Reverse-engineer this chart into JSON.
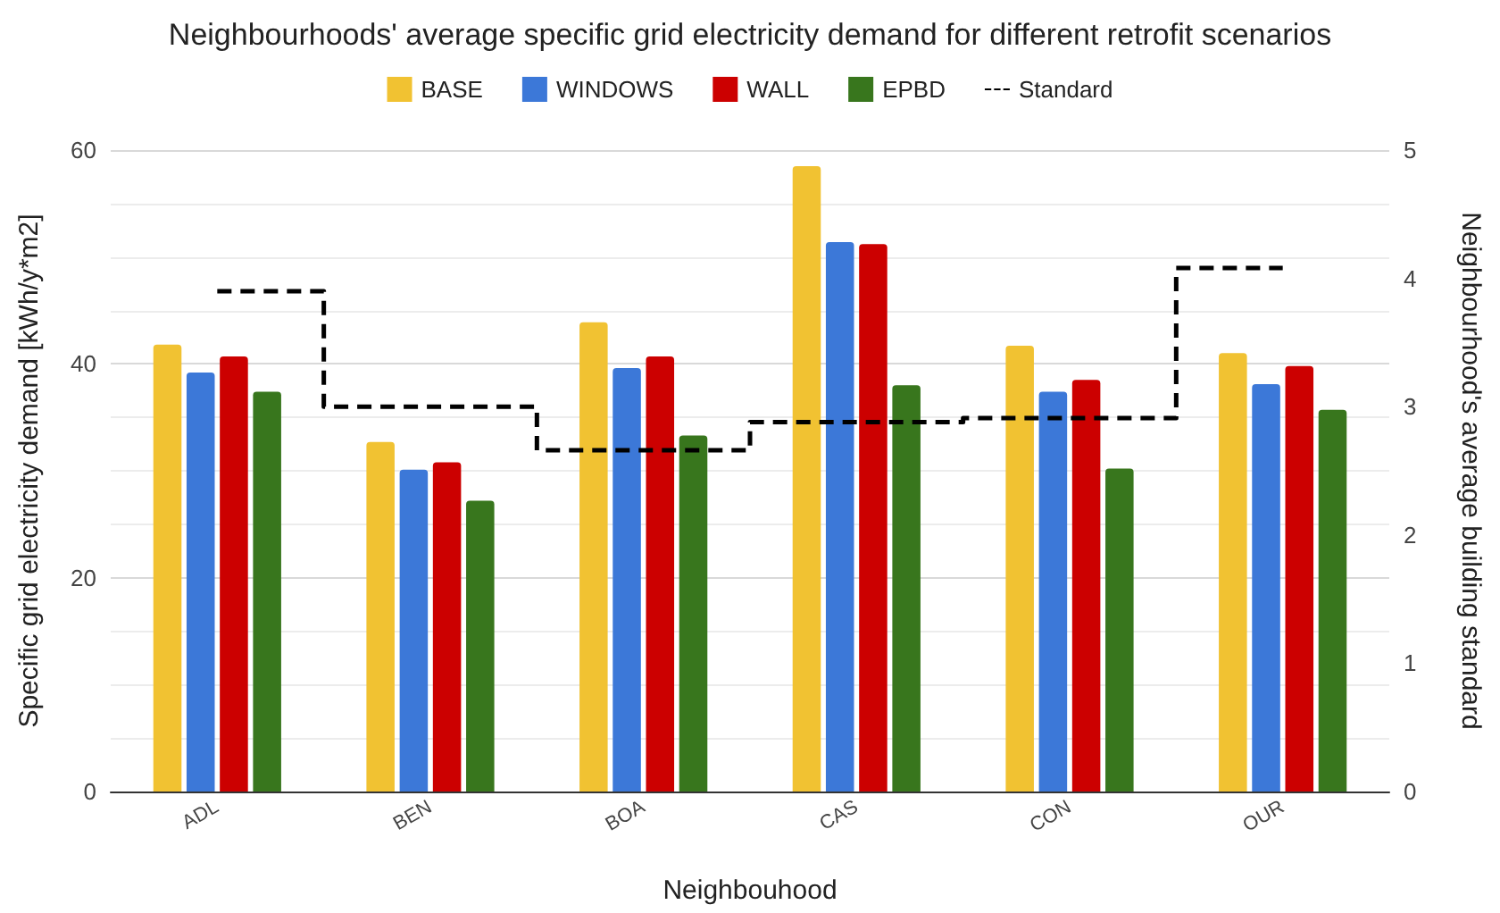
{
  "chart_data": {
    "type": "bar",
    "title": "Neighbourhoods' average specific grid electricity demand for different retrofit scenarios",
    "xlabel": "Neighbouhood",
    "ylabel": "Specific grid electricity demand [kWh/y*m2]",
    "y2label": "Neighbourhood's average building standard",
    "categories": [
      "ADL",
      "BEN",
      "BOA",
      "CAS",
      "CON",
      "OUR"
    ],
    "series": [
      {
        "name": "BASE",
        "color": "#f1c232",
        "values": [
          41.8,
          32.7,
          43.9,
          58.5,
          41.7,
          41.0
        ]
      },
      {
        "name": "WINDOWS",
        "color": "#3c78d8",
        "values": [
          39.2,
          30.1,
          39.6,
          51.4,
          37.4,
          38.1
        ]
      },
      {
        "name": "WALL",
        "color": "#cc0000",
        "values": [
          40.7,
          30.8,
          40.7,
          51.2,
          38.5,
          39.8
        ]
      },
      {
        "name": "EPBD",
        "color": "#38761d",
        "values": [
          37.4,
          27.2,
          33.3,
          38.0,
          30.2,
          35.7
        ]
      },
      {
        "name": "Standard",
        "type": "step",
        "axis": "y2",
        "color": "#000000",
        "line_style": "dashed",
        "marker": "none",
        "values": [
          3.9,
          3.0,
          2.66,
          2.88,
          2.91,
          4.08
        ]
      }
    ],
    "ylim": [
      0,
      60
    ],
    "yticks": [
      0,
      20,
      40,
      60
    ],
    "y2lim": [
      0,
      5
    ],
    "y2ticks": [
      0,
      1,
      2,
      3,
      4,
      5
    ],
    "grid": "y",
    "legend": "top"
  }
}
